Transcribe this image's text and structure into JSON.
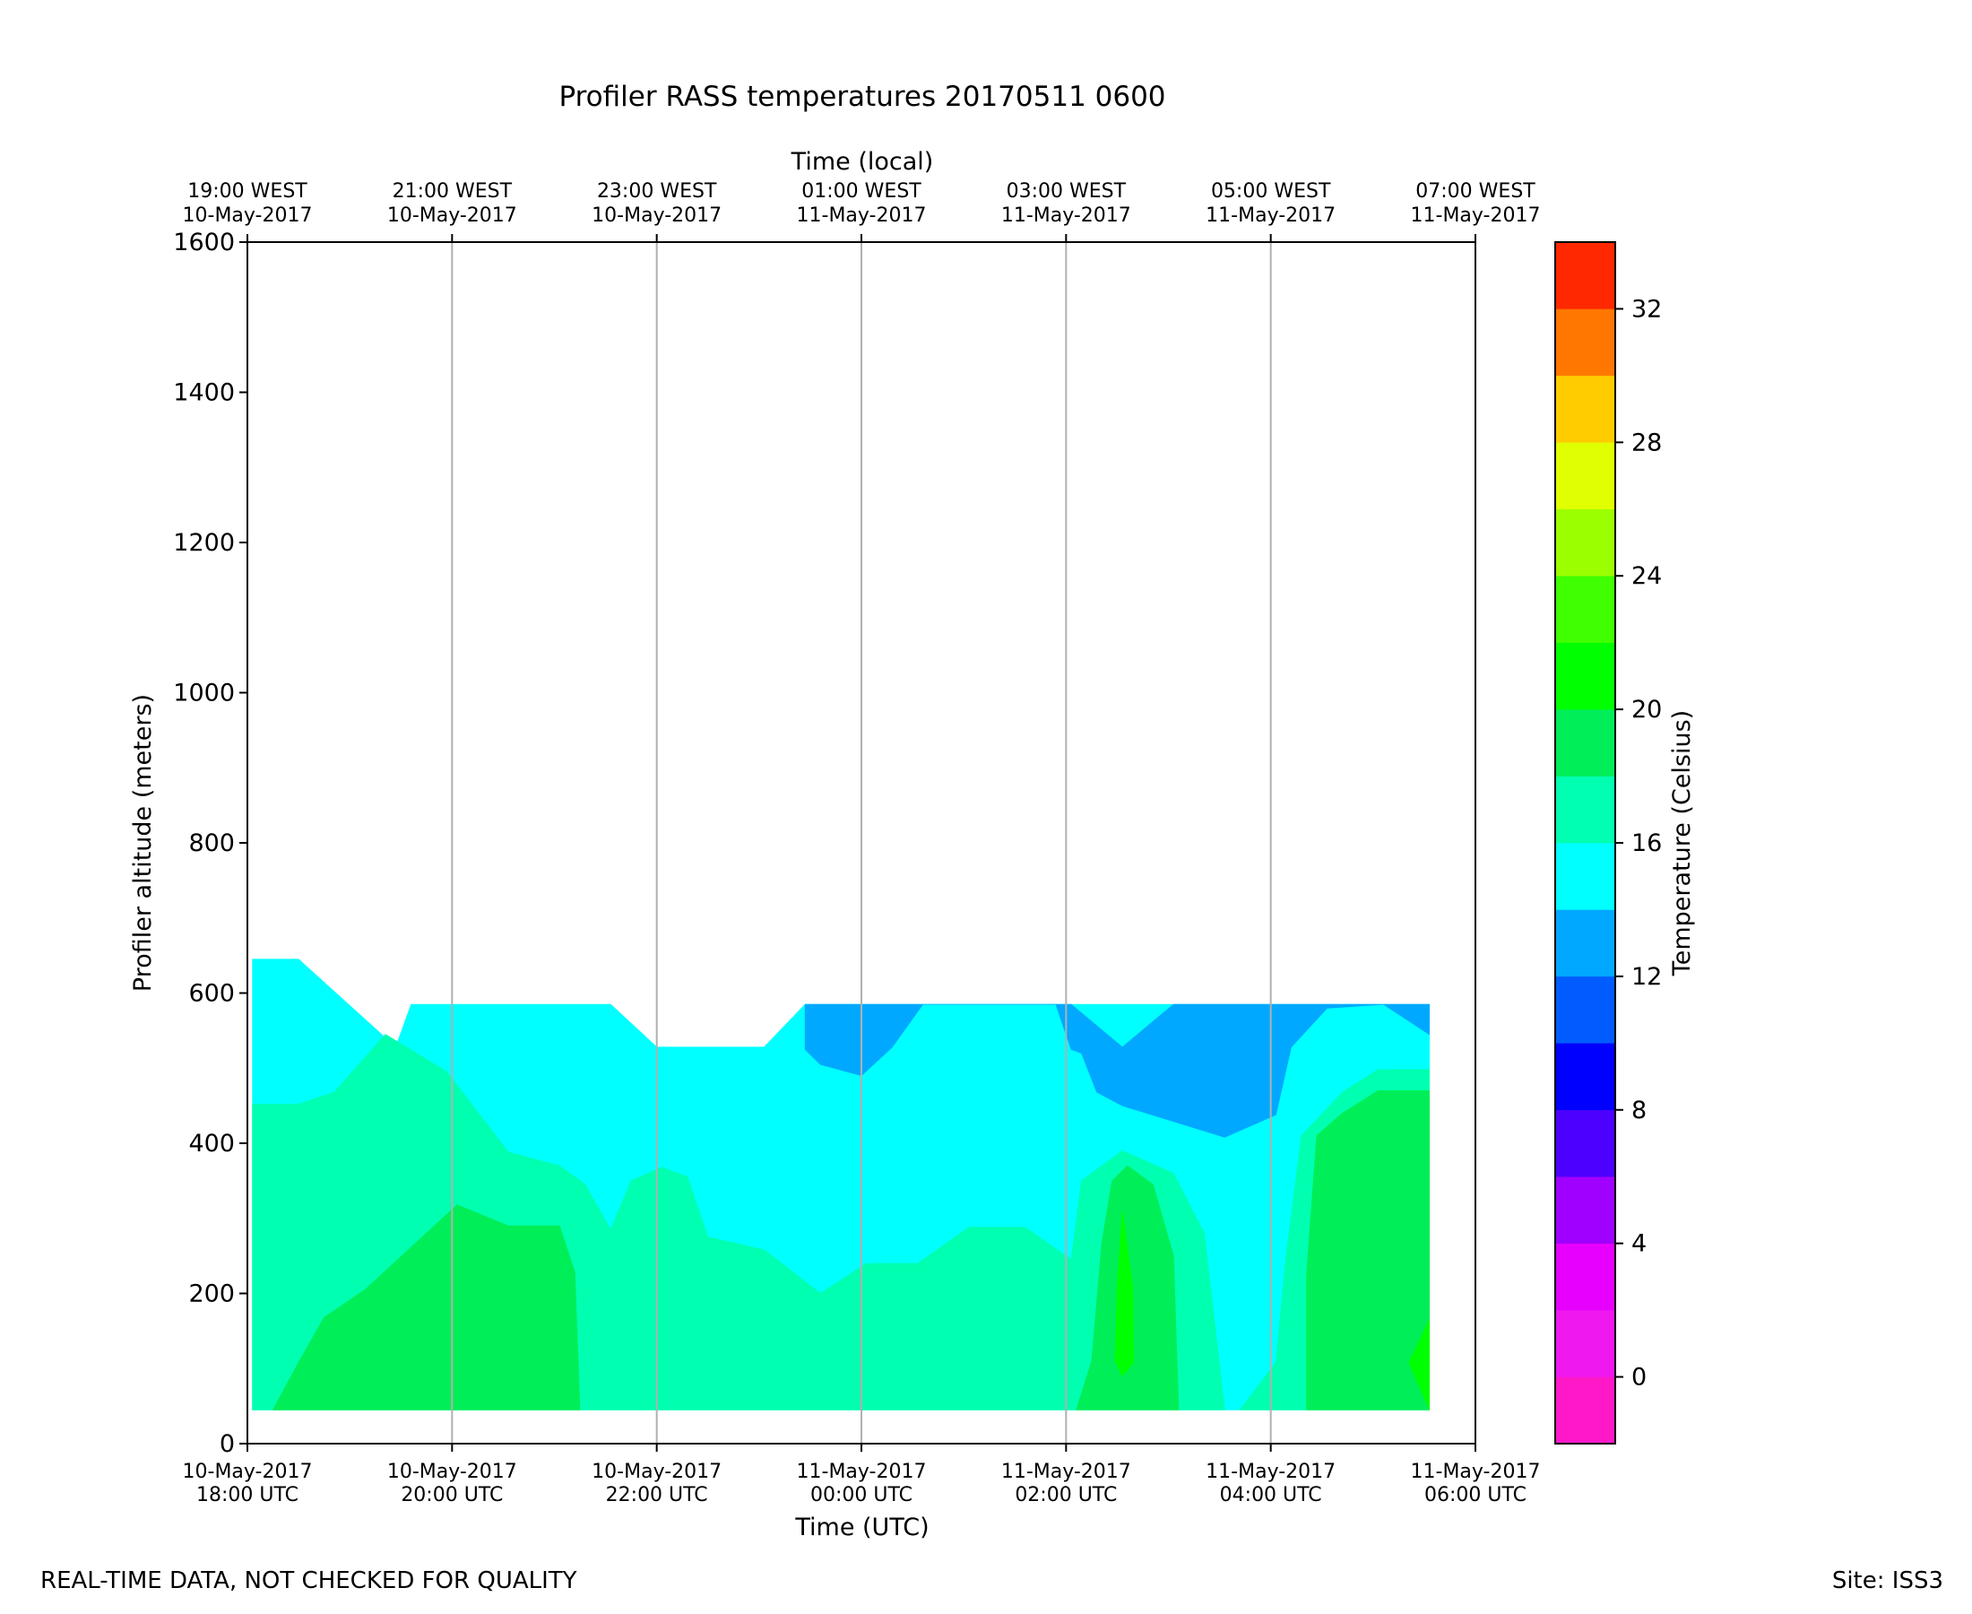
{
  "chart_data": {
    "type": "heatmap",
    "title": "Profiler RASS temperatures 20170511 0600",
    "xlabel": "Time (UTC)",
    "xlabel_top": "Time (local)",
    "ylabel": "Profiler altitude (meters)",
    "colorbar_label": "Temperature (Celsius)",
    "xlim_hours": [
      0,
      12
    ],
    "ylim": [
      0,
      1600
    ],
    "bottom_ticks": [
      {
        "h": 0,
        "l1": "10-May-2017",
        "l2": "18:00 UTC"
      },
      {
        "h": 2,
        "l1": "10-May-2017",
        "l2": "20:00 UTC"
      },
      {
        "h": 4,
        "l1": "10-May-2017",
        "l2": "22:00 UTC"
      },
      {
        "h": 6,
        "l1": "11-May-2017",
        "l2": "00:00 UTC"
      },
      {
        "h": 8,
        "l1": "11-May-2017",
        "l2": "02:00 UTC"
      },
      {
        "h": 10,
        "l1": "11-May-2017",
        "l2": "04:00 UTC"
      },
      {
        "h": 12,
        "l1": "11-May-2017",
        "l2": "06:00 UTC"
      }
    ],
    "top_ticks": [
      {
        "h": 0,
        "l1": "19:00 WEST",
        "l2": "10-May-2017"
      },
      {
        "h": 2,
        "l1": "21:00 WEST",
        "l2": "10-May-2017"
      },
      {
        "h": 4,
        "l1": "23:00 WEST",
        "l2": "10-May-2017"
      },
      {
        "h": 6,
        "l1": "01:00 WEST",
        "l2": "11-May-2017"
      },
      {
        "h": 8,
        "l1": "03:00 WEST",
        "l2": "11-May-2017"
      },
      {
        "h": 10,
        "l1": "05:00 WEST",
        "l2": "11-May-2017"
      },
      {
        "h": 12,
        "l1": "07:00 WEST",
        "l2": "11-May-2017"
      }
    ],
    "y_ticks": [
      "0",
      "200",
      "400",
      "600",
      "800",
      "1000",
      "1200",
      "1400",
      "1600"
    ],
    "y_tick_values": [
      0,
      200,
      400,
      600,
      800,
      1000,
      1200,
      1400,
      1600
    ],
    "colorbar": {
      "min": -2,
      "max": 34,
      "step": 2,
      "ticks": [
        "0",
        "4",
        "8",
        "12",
        "16",
        "20",
        "24",
        "28",
        "32"
      ],
      "tick_values": [
        0,
        4,
        8,
        12,
        16,
        20,
        24,
        28,
        32
      ],
      "colors": [
        "#ff18c8",
        "#ef18ef",
        "#e800ff",
        "#a000ff",
        "#4c00ff",
        "#0000ff",
        "#005cff",
        "#00a8ff",
        "#00ffff",
        "#00ffb0",
        "#00ee58",
        "#00ff00",
        "#40ff00",
        "#9cff00",
        "#e0ff00",
        "#ffcc00",
        "#ff7700",
        "#ff2800"
      ]
    },
    "contour_regions": [
      {
        "band": "12-14 C",
        "color": "#00ffff",
        "points": [
          [
            0.05,
            45
          ],
          [
            0.05,
            645
          ],
          [
            0.5,
            645
          ],
          [
            1.45,
            528
          ],
          [
            1.6,
            585
          ],
          [
            3.55,
            585
          ],
          [
            4,
            528
          ],
          [
            5.05,
            528
          ],
          [
            5.45,
            585
          ],
          [
            11.55,
            585
          ],
          [
            11.55,
            45
          ],
          [
            0.05,
            45
          ]
        ]
      },
      {
        "band": "10-12 C",
        "color": "#00a8ff",
        "points": [
          [
            5.45,
            585
          ],
          [
            8.05,
            585
          ],
          [
            8.55,
            528
          ],
          [
            9.05,
            585
          ],
          [
            11.55,
            585
          ],
          [
            11.55,
            545
          ],
          [
            11.1,
            585
          ],
          [
            10.55,
            580
          ],
          [
            10.2,
            528
          ],
          [
            10.05,
            438
          ],
          [
            9.55,
            408
          ],
          [
            8.55,
            450
          ],
          [
            8.3,
            468
          ],
          [
            8.15,
            520
          ],
          [
            8.05,
            525
          ],
          [
            7.9,
            585
          ],
          [
            6.6,
            585
          ],
          [
            6.3,
            528
          ],
          [
            6,
            490
          ],
          [
            5.6,
            505
          ],
          [
            5.45,
            525
          ]
        ]
      },
      {
        "band": "14-16 C",
        "color": "#00ffb0",
        "points": [
          [
            0.05,
            45
          ],
          [
            0.05,
            452
          ],
          [
            0.5,
            452
          ],
          [
            0.85,
            468
          ],
          [
            1.35,
            545
          ],
          [
            1.95,
            495
          ],
          [
            2.55,
            388
          ],
          [
            3.05,
            370
          ],
          [
            3.3,
            345
          ],
          [
            3.55,
            285
          ],
          [
            3.75,
            350
          ],
          [
            4.05,
            368
          ],
          [
            4.3,
            355
          ],
          [
            4.5,
            275
          ],
          [
            5.05,
            258
          ],
          [
            5.6,
            200
          ],
          [
            6.05,
            240
          ],
          [
            6.55,
            240
          ],
          [
            7.05,
            288
          ],
          [
            7.6,
            288
          ],
          [
            8.05,
            245
          ],
          [
            8.15,
            350
          ],
          [
            8.55,
            390
          ],
          [
            9.05,
            360
          ],
          [
            9.35,
            280
          ],
          [
            9.55,
            45
          ],
          [
            0.05,
            45
          ]
        ]
      },
      {
        "band": "14-16 C",
        "color": "#00ffb0",
        "points": [
          [
            9.7,
            45
          ],
          [
            10.05,
            108
          ],
          [
            10.15,
            250
          ],
          [
            10.3,
            410
          ],
          [
            10.7,
            468
          ],
          [
            11.05,
            498
          ],
          [
            11.55,
            498
          ],
          [
            11.55,
            45
          ]
        ]
      },
      {
        "band": "16-18 C",
        "color": "#00ee58",
        "points": [
          [
            0.25,
            45
          ],
          [
            0.5,
            108
          ],
          [
            0.75,
            168
          ],
          [
            1.15,
            205
          ],
          [
            2.05,
            318
          ],
          [
            2.55,
            290
          ],
          [
            3.05,
            290
          ],
          [
            3.2,
            228
          ],
          [
            3.25,
            45
          ]
        ]
      },
      {
        "band": "16-18 C",
        "color": "#00ee58",
        "points": [
          [
            8.1,
            45
          ],
          [
            8.25,
            110
          ],
          [
            8.35,
            268
          ],
          [
            8.45,
            350
          ],
          [
            8.6,
            370
          ],
          [
            8.85,
            345
          ],
          [
            9.05,
            250
          ],
          [
            9.1,
            45
          ]
        ]
      },
      {
        "band": "16-18 C",
        "color": "#00ee58",
        "points": [
          [
            10.35,
            45
          ],
          [
            10.35,
            225
          ],
          [
            10.45,
            410
          ],
          [
            10.7,
            440
          ],
          [
            11.05,
            470
          ],
          [
            11.55,
            470
          ],
          [
            11.55,
            45
          ]
        ]
      },
      {
        "band": "18-20 C",
        "color": "#00ff00",
        "points": [
          [
            8.48,
            110
          ],
          [
            8.55,
            90
          ],
          [
            8.66,
            108
          ],
          [
            8.65,
            210
          ],
          [
            8.55,
            310
          ],
          [
            8.5,
            210
          ]
        ]
      },
      {
        "band": "18-20 C",
        "color": "#00ff00",
        "points": [
          [
            11.35,
            108
          ],
          [
            11.55,
            165
          ],
          [
            11.55,
            45
          ]
        ]
      }
    ]
  },
  "footer": {
    "left": "REAL-TIME DATA, NOT CHECKED FOR QUALITY",
    "right": "Site: ISS3"
  }
}
